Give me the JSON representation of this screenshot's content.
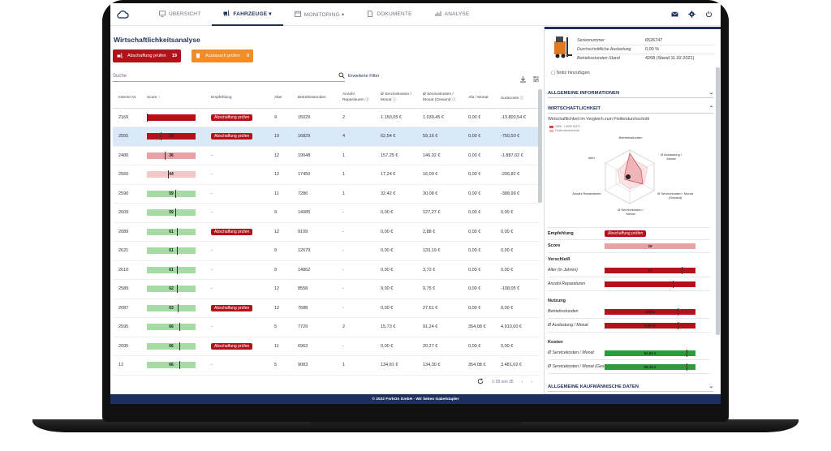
{
  "colors": {
    "brand": "#1d2f5e",
    "red": "#b3121b",
    "orange": "#ee8d2c",
    "green": "#2c9b3a",
    "light_green": "#a6dba6",
    "light_red": "#e8a2a6",
    "pale_red": "#f3c6c8"
  },
  "nav": {
    "logo_icon": "cloud-logo-icon",
    "items": [
      {
        "label": "ÜBERSICHT",
        "icon": "monitor-icon"
      },
      {
        "label": "FAHRZEUGE ▾",
        "icon": "forklift-icon"
      },
      {
        "label": "MONITORING ▾",
        "icon": "calendar-icon"
      },
      {
        "label": "DOKUMENTE",
        "icon": "document-icon"
      },
      {
        "label": "ANALYSE",
        "icon": "chart-icon"
      }
    ]
  },
  "page": {
    "title": "Wirtschaftlichkeitsanalyse",
    "cards": [
      {
        "label": "Abschaffung prüfen",
        "count": "19"
      },
      {
        "label": "Austausch prüfen",
        "count": "0"
      }
    ],
    "search_placeholder": "Suche",
    "extended_filter": "Erweiterte Filter",
    "columns": [
      "Interne Nr.",
      "Score ↑",
      "Empfehlung",
      "Alter",
      "Betriebsstunden",
      "Anzahl Reparaturen ⓘ",
      "Ø Servicekosten / Monat ⓘ",
      "Ø Servicekosten / Monat (Gesamt) ⓘ",
      "Afa / Monat",
      "Sunkcosts ⓘ"
    ],
    "rows": [
      {
        "nr": "2169",
        "score": "",
        "level": 0.0,
        "color": "#b3121b",
        "emp": "Abschaffung prüfen",
        "alter": "9",
        "bs": "15029",
        "rep": "2",
        "sk": "1.150,05 €",
        "skg": "1.039,45 €",
        "afa": "0,00 €",
        "sunk": "-13.800,54 €"
      },
      {
        "nr": "2555",
        "score": "29",
        "level": 0.29,
        "color": "#b3121b",
        "emp": "Abschaffung prüfen",
        "alter": "10",
        "bs": "16829",
        "rep": "4",
        "sk": "62,54 €",
        "skg": "59,16 €",
        "afa": "0,00 €",
        "sunk": "-750,50 €"
      },
      {
        "nr": "2480",
        "score": "36",
        "level": 0.36,
        "color": "#e8a2a6",
        "emp": "-",
        "alter": "12",
        "bs": "19048",
        "rep": "1",
        "sk": "157,25 €",
        "skg": "146,02 €",
        "afa": "0,00 €",
        "sunk": "-1.887,02 €"
      },
      {
        "nr": "2560",
        "score": "44",
        "level": 0.44,
        "color": "#f3c6c8",
        "emp": "-",
        "alter": "12",
        "bs": "17450",
        "rep": "1",
        "sk": "17,24 €",
        "skg": "16,00 €",
        "afa": "0,00 €",
        "sunk": "-206,82 €"
      },
      {
        "nr": "2590",
        "score": "59",
        "level": 0.59,
        "color": "#a6dba6",
        "emp": "-",
        "alter": "11",
        "bs": "7286",
        "rep": "1",
        "sk": "32,42 €",
        "skg": "30,08 €",
        "afa": "0,00 €",
        "sunk": "-388,99 €"
      },
      {
        "nr": "2609",
        "score": "59",
        "level": 0.59,
        "color": "#a6dba6",
        "emp": "-",
        "alter": "9",
        "bs": "14085",
        "rep": "-",
        "sk": "0,00 €",
        "skg": "127,27 €",
        "afa": "0,00 €",
        "sunk": "0,00 €"
      },
      {
        "nr": "2089",
        "score": "61",
        "level": 0.61,
        "color": "#a6dba6",
        "emp": "Abschaffung prüfen",
        "alter": "12",
        "bs": "9109",
        "rep": "-",
        "sk": "0,00 €",
        "skg": "2,88 €",
        "afa": "0,00 €",
        "sunk": "0,00 €"
      },
      {
        "nr": "2621",
        "score": "61",
        "level": 0.61,
        "color": "#a6dba6",
        "emp": "-",
        "alter": "9",
        "bs": "12679",
        "rep": "-",
        "sk": "0,00 €",
        "skg": "133,19 €",
        "afa": "0,00 €",
        "sunk": "0,00 €"
      },
      {
        "nr": "2610",
        "score": "61",
        "level": 0.61,
        "color": "#a6dba6",
        "emp": "-",
        "alter": "9",
        "bs": "14862",
        "rep": "-",
        "sk": "0,00 €",
        "skg": "3,72 €",
        "afa": "0,00 €",
        "sunk": "0,00 €"
      },
      {
        "nr": "2589",
        "score": "62",
        "level": 0.62,
        "color": "#a6dba6",
        "emp": "-",
        "alter": "12",
        "bs": "8558",
        "rep": "-",
        "sk": "9,00 €",
        "skg": "9,75 €",
        "afa": "0,00 €",
        "sunk": "-108,05 €"
      },
      {
        "nr": "2087",
        "score": "63",
        "level": 0.63,
        "color": "#a6dba6",
        "emp": "Abschaffung prüfen",
        "alter": "12",
        "bs": "7688",
        "rep": "-",
        "sk": "0,00 €",
        "skg": "27,61 €",
        "afa": "0,00 €",
        "sunk": "0,00 €"
      },
      {
        "nr": "2595",
        "score": "66",
        "level": 0.66,
        "color": "#a6dba6",
        "emp": "-",
        "alter": "5",
        "bs": "7729",
        "rep": "2",
        "sk": "15,73 €",
        "skg": "91,24 €",
        "afa": "354,08 €",
        "sunk": "4.910,00 €"
      },
      {
        "nr": "2095",
        "score": "66",
        "level": 0.66,
        "color": "#a6dba6",
        "emp": "Abschaffung prüfen",
        "alter": "11",
        "bs": "6963",
        "rep": "-",
        "sk": "0,00 €",
        "skg": "20,27 €",
        "afa": "0,00 €",
        "sunk": "0,00 €"
      },
      {
        "nr": "12",
        "score": "66",
        "level": 0.66,
        "color": "#a6dba6",
        "emp": "-",
        "alter": "5",
        "bs": "9083",
        "rep": "1",
        "sk": "134,81 €",
        "skg": "134,30 €",
        "afa": "354,08 €",
        "sunk": "3.481,02 €"
      }
    ],
    "pager": "1-35 von 35"
  },
  "detail": {
    "fields": [
      {
        "label": "Seriennummer",
        "value": "6526747"
      },
      {
        "label": "Durchschnittliche Auslastung",
        "value": "0,00 %"
      },
      {
        "label": "Betriebsstunden-Stand",
        "value": "4268 (Stand 11.02.2021)"
      }
    ],
    "notiz": "Notiz hinzufügen",
    "sec_allg": "ALLGEMEINE INFORMATIONEN",
    "sec_wirt": "WIRTSCHAFTLICHKEIT",
    "radar_sub": "Wirtschaftlichkeit im Vergleich zum Flottendurchschnitt",
    "legend": [
      "2555 - LINDE MATT",
      "Flottendurchschnitt"
    ],
    "radar_labels": [
      "Betriebsstunden",
      "Ø Auslastung / Monat",
      "Ø Servicekosten / Monat (Gesamt)",
      "Ø Servicekosten / Monat",
      "Anzahl Reparaturen",
      "Alter"
    ],
    "empfehlung_label": "Empfehlung",
    "empfehlung_value": "Abschaffung prüfen",
    "score_label": "Score",
    "score_value": "29",
    "groups": [
      {
        "name": "Verschleiß",
        "rows": [
          {
            "label": "Alter (in Jahren)",
            "value": "10",
            "color": "#b3121b",
            "level": 0.85
          },
          {
            "label": "Anzahl Reparaturen",
            "value": "",
            "color": "#b3121b",
            "level": 0.75
          }
        ]
      },
      {
        "name": "Nutzung",
        "rows": [
          {
            "label": "Betriebsstunden",
            "value": "16829",
            "color": "#b3121b",
            "level": 0.8
          },
          {
            "label": "Ø Auslastung / Monat",
            "value": "0,00 %",
            "color": "#b3121b",
            "level": 0.8
          }
        ]
      },
      {
        "name": "Kosten",
        "rows": [
          {
            "label": "Ø Servicekosten / Monat",
            "value": "62,54 €",
            "color": "#2c9b3a",
            "level": 0.9
          },
          {
            "label": "Ø Servicekosten / Monat (Gesamt)",
            "value": "59,16 €",
            "color": "#2c9b3a",
            "level": 0.9
          }
        ]
      }
    ],
    "sec_kauf": "ALLGEMEINE KAUFMÄNNISCHE DATEN"
  },
  "footer": "© 2022 ForkOn GmbH - Wir lieben Gabelstapler"
}
